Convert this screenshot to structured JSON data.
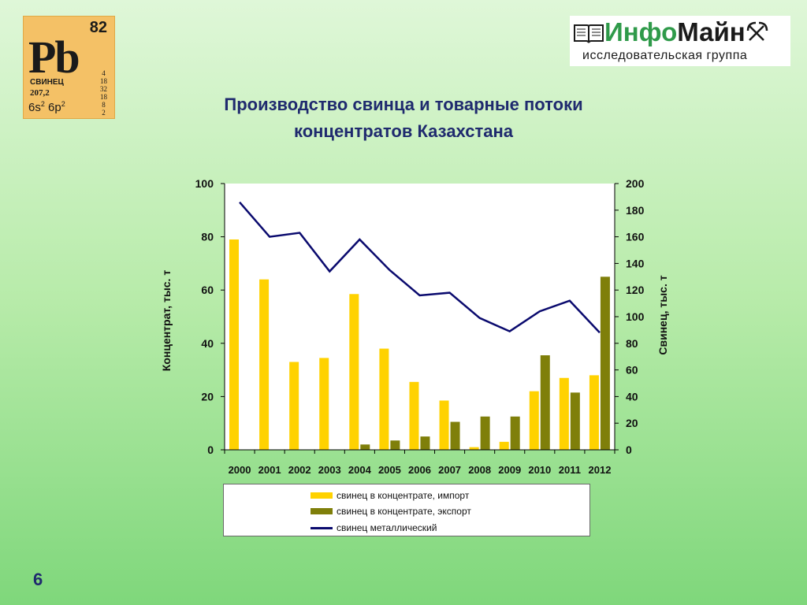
{
  "element_tile": {
    "symbol": "Pb",
    "number": "82",
    "name": "СВИНЕЦ",
    "mass": "207,2",
    "config_a": "6s",
    "config_a_sup": "2",
    "config_b": " 6p",
    "config_b_sup": "2",
    "shells": [
      "4",
      "18",
      "32",
      "18",
      "8",
      "2"
    ]
  },
  "logo": {
    "part1": "Инфо",
    "part2": "Майн",
    "subtitle": "исследовательская  группа",
    "icons": [
      "book-icon",
      "pickaxe-icon"
    ],
    "brand_color": "#2f9a4a"
  },
  "title_line1": "Производство свинца и товарные потоки",
  "title_line2": "концентратов Казахстана",
  "slide_number": "6",
  "colors": {
    "import": "#ffd200",
    "export": "#7f7f0a",
    "metal": "#0a0a6e",
    "title": "#1f2a6e"
  },
  "chart_data": {
    "type": "bar",
    "title": "Производство свинца и товарные потоки концентратов Казахстана",
    "categories": [
      "2000",
      "2001",
      "2002",
      "2003",
      "2004",
      "2005",
      "2006",
      "2007",
      "2008",
      "2009",
      "2010",
      "2011",
      "2012"
    ],
    "ylabel": "Концентрат, тыс. т",
    "y2label": "Свинец, тыс. т",
    "ylim": [
      0,
      100
    ],
    "y2lim": [
      0,
      200
    ],
    "yticks": [
      "0",
      "20",
      "40",
      "60",
      "80",
      "100"
    ],
    "y2ticks": [
      "0",
      "20",
      "40",
      "60",
      "80",
      "100",
      "120",
      "140",
      "160",
      "180",
      "200"
    ],
    "grid": false,
    "legend_position": "bottom",
    "series": [
      {
        "name": "свинец в концентрате, импорт",
        "type": "bar",
        "axis": "left",
        "values": [
          79,
          64,
          33,
          34.5,
          58.5,
          38,
          25.5,
          18.5,
          1,
          3,
          22,
          27,
          28
        ]
      },
      {
        "name": "свинец в концентрате, экспорт",
        "type": "bar",
        "axis": "left",
        "values": [
          0,
          0,
          0,
          0,
          2,
          3.5,
          5,
          10.5,
          12.5,
          12.5,
          35.5,
          21.5,
          65
        ]
      },
      {
        "name": "свинец металлический",
        "type": "line",
        "axis": "right",
        "values": [
          186,
          160,
          163,
          134,
          158,
          135,
          116,
          118,
          99,
          89,
          104,
          112,
          88
        ]
      }
    ]
  }
}
